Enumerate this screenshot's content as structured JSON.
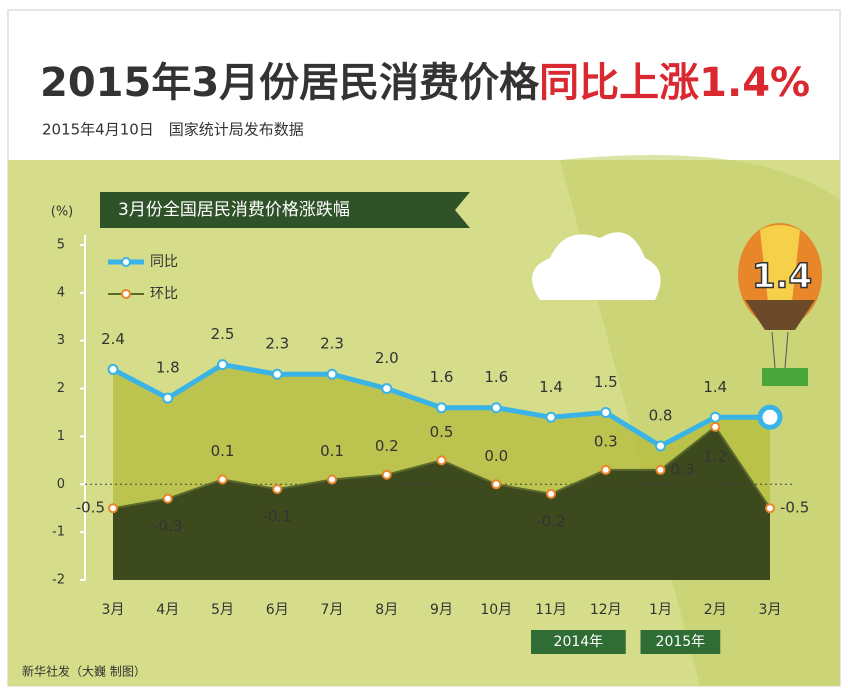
{
  "title_black": "2015年3月份居民消费价格",
  "title_red": "同比上涨1.4%",
  "subtitle": "2015年4月10日　国家统计局发布数据",
  "footer": "新华社发（大巍 制图）",
  "chart_data": {
    "type": "line",
    "title": "3月份全国居民消费价格涨跌幅",
    "y_label": "(%)",
    "categories": [
      "3月",
      "4月",
      "5月",
      "6月",
      "7月",
      "8月",
      "9月",
      "10月",
      "11月",
      "12月",
      "1月",
      "2月",
      "3月"
    ],
    "year_labels": [
      "2014年",
      "2015年"
    ],
    "series": [
      {
        "name": "同比",
        "color": "#3ab4e6",
        "values": [
          2.4,
          1.8,
          2.5,
          2.3,
          2.3,
          2.0,
          1.6,
          1.6,
          1.4,
          1.5,
          0.8,
          1.4,
          1.4
        ],
        "value_labels": [
          "2.4",
          "1.8",
          "2.5",
          "2.3",
          "2.3",
          "2.0",
          "1.6",
          "1.6",
          "1.4",
          "1.5",
          "0.8",
          "1.4",
          "1.4"
        ]
      },
      {
        "name": "环比",
        "color": "#3d4a1e",
        "values": [
          -0.5,
          -0.3,
          0.1,
          -0.1,
          0.1,
          0.2,
          0.5,
          0.0,
          -0.2,
          0.3,
          0.3,
          1.2,
          -0.5
        ],
        "value_labels": [
          "-0.5",
          "-0.3",
          "0.1",
          "-0.1",
          "0.1",
          "0.2",
          "0.5",
          "0.0",
          "-0.2",
          "0.3",
          "0.3",
          "1.2",
          "-0.5"
        ]
      }
    ],
    "ylim": [
      -2,
      5
    ],
    "yticks": [
      5,
      4,
      3,
      2,
      1,
      0,
      -1,
      -2
    ]
  }
}
